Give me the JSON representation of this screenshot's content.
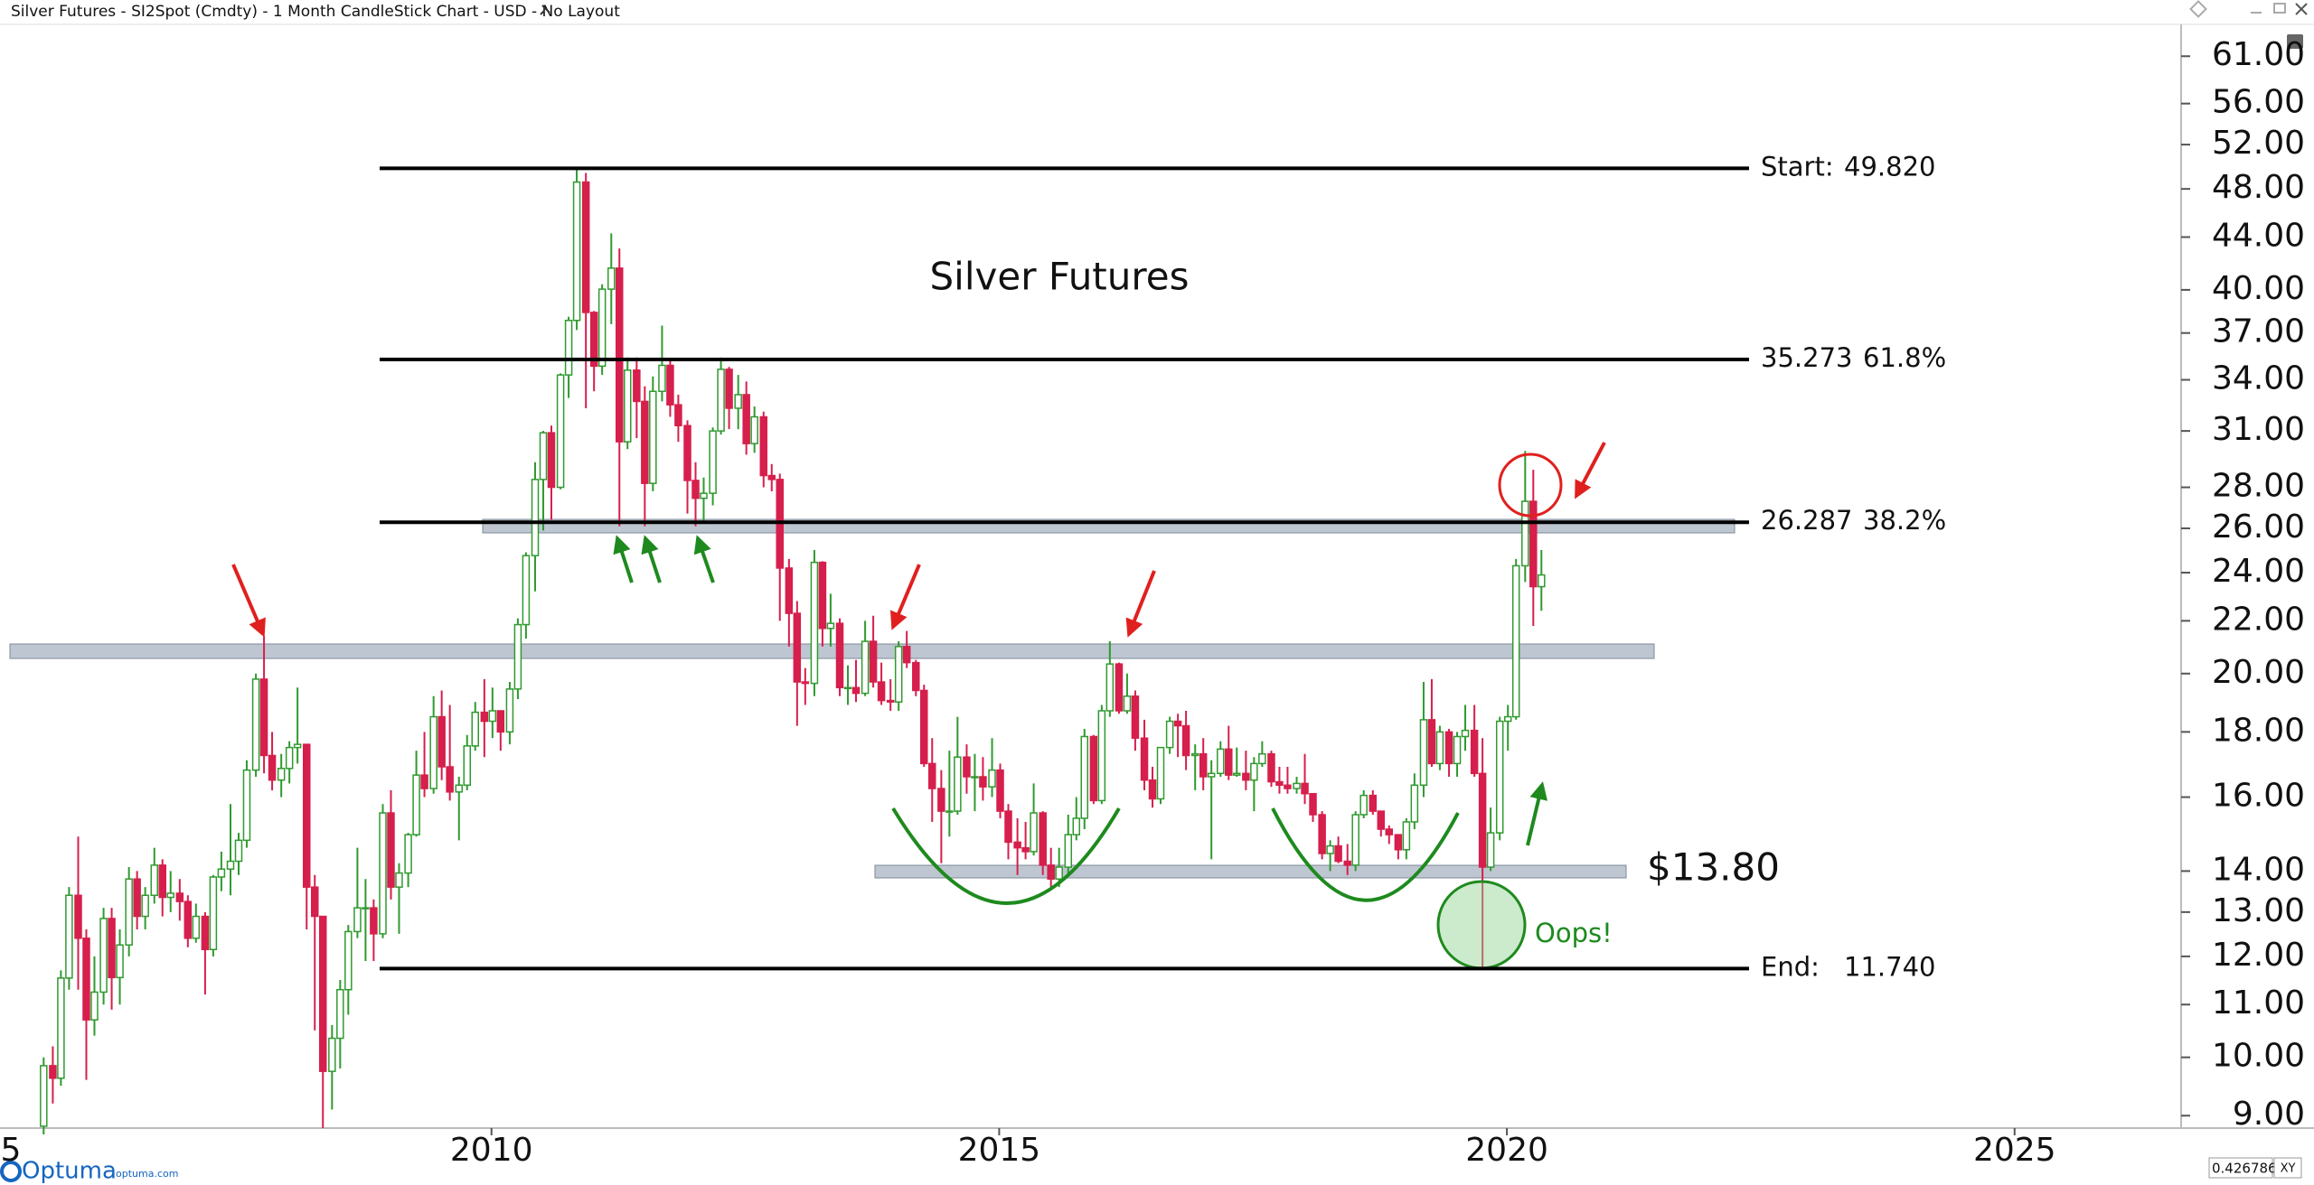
{
  "header": {
    "title": "Silver Futures - SI2Spot (Cmdty) - 1 Month CandleStick Chart - USD - No Layout"
  },
  "chart_data": {
    "type": "candlestick",
    "title": "Silver Futures",
    "x": [
      2005.59,
      2005.68,
      2005.76,
      2005.84,
      2005.93,
      2006.01,
      2006.09,
      2006.18,
      2006.26,
      2006.34,
      2006.43,
      2006.51,
      2006.59,
      2006.68,
      2006.76,
      2006.84,
      2006.93,
      2007.01,
      2007.09,
      2007.18,
      2007.26,
      2007.34,
      2007.43,
      2007.51,
      2007.59,
      2007.68,
      2007.76,
      2007.84,
      2007.93,
      2008.01,
      2008.09,
      2008.18,
      2008.26,
      2008.34,
      2008.43,
      2008.51,
      2008.59,
      2008.68,
      2008.76,
      2008.84,
      2008.93,
      2009.01,
      2009.09,
      2009.18,
      2009.26,
      2009.34,
      2009.43,
      2009.51,
      2009.59,
      2009.68,
      2009.76,
      2009.84,
      2009.93,
      2010.01,
      2010.09,
      2010.18,
      2010.26,
      2010.34,
      2010.43,
      2010.51,
      2010.59,
      2010.68,
      2010.76,
      2010.84,
      2010.93,
      2011.01,
      2011.09,
      2011.18,
      2011.26,
      2011.34,
      2011.43,
      2011.51,
      2011.59,
      2011.68,
      2011.76,
      2011.84,
      2011.93,
      2012.01,
      2012.09,
      2012.18,
      2012.26,
      2012.34,
      2012.43,
      2012.51,
      2012.59,
      2012.68,
      2012.76,
      2012.84,
      2012.93,
      2013.01,
      2013.09,
      2013.18,
      2013.26,
      2013.34,
      2013.43,
      2013.51,
      2013.59,
      2013.68,
      2013.76,
      2013.84,
      2013.93,
      2014.01,
      2014.09,
      2014.18,
      2014.26,
      2014.34,
      2014.43,
      2014.51,
      2014.59,
      2014.68,
      2014.76,
      2014.84,
      2014.93,
      2015.01,
      2015.09,
      2015.18,
      2015.26,
      2015.34,
      2015.43,
      2015.51,
      2015.59,
      2015.68,
      2015.76,
      2015.84,
      2015.93,
      2016.01,
      2016.09,
      2016.18,
      2016.26,
      2016.34,
      2016.43,
      2016.51,
      2016.59,
      2016.68,
      2016.76,
      2016.84,
      2016.93,
      2017.01,
      2017.09,
      2017.18,
      2017.26,
      2017.34,
      2017.43,
      2017.51,
      2017.59,
      2017.68,
      2017.76,
      2017.84,
      2017.93,
      2018.01,
      2018.09,
      2018.18,
      2018.26,
      2018.34,
      2018.43,
      2018.51,
      2018.59,
      2018.68,
      2018.76,
      2018.84,
      2018.93,
      2019.01,
      2019.09,
      2019.18,
      2019.26,
      2019.34,
      2019.43,
      2019.51,
      2019.59,
      2019.68,
      2019.76,
      2019.84,
      2019.93,
      2020.01,
      2020.09,
      2020.18,
      2020.26,
      2020.34
    ],
    "open": [
      8.83,
      9.85,
      9.63,
      11.54,
      13.4,
      12.4,
      10.7,
      11.25,
      12.85,
      11.55,
      12.25,
      13.8,
      12.9,
      13.4,
      14.15,
      13.35,
      13.45,
      13.25,
      12.4,
      12.9,
      12.15,
      13.85,
      14.05,
      14.25,
      14.8,
      16.8,
      19.8,
      17.25,
      16.5,
      16.85,
      17.5,
      17.6,
      13.6,
      12.9,
      9.75,
      10.35,
      11.3,
      12.55,
      13.1,
      13.1,
      12.5,
      15.55,
      13.6,
      13.95,
      14.95,
      16.65,
      16.25,
      18.5,
      16.9,
      16.15,
      16.35,
      17.55,
      18.65,
      18.35,
      18.7,
      18.0,
      19.45,
      21.85,
      24.75,
      28.4,
      30.9,
      28.0,
      34.3,
      37.85,
      48.6,
      38.4,
      34.85,
      40.05,
      41.6,
      30.4,
      34.6,
      32.7,
      28.2,
      33.3,
      34.9,
      32.5,
      31.3,
      28.35,
      27.45,
      27.7,
      31.0,
      34.65,
      32.3,
      33.1,
      30.3,
      31.8,
      28.6,
      28.4,
      24.2,
      22.3,
      19.7,
      19.65,
      24.45,
      21.7,
      21.9,
      19.5,
      19.5,
      19.3,
      21.2,
      19.7,
      19.05,
      19.0,
      21.0,
      20.4,
      19.4,
      17.0,
      16.25,
      15.6,
      15.6,
      17.2,
      16.6,
      16.6,
      16.3,
      16.8,
      15.6,
      14.75,
      14.6,
      14.5,
      15.55,
      14.15,
      13.8,
      14.1,
      14.95,
      15.4,
      17.85,
      15.9,
      18.7,
      20.35,
      18.7,
      19.2,
      17.8,
      16.5,
      15.95,
      17.5,
      18.35,
      18.2,
      17.25,
      17.3,
      16.6,
      16.7,
      17.45,
      16.65,
      16.7,
      16.5,
      17.0,
      17.3,
      16.45,
      16.35,
      16.25,
      16.4,
      16.1,
      15.5,
      14.45,
      14.65,
      14.25,
      14.15,
      15.5,
      16.05,
      15.6,
      15.1,
      14.95,
      14.55,
      15.3,
      16.35,
      18.4,
      17.0,
      18.0,
      17.0,
      17.85,
      18.05,
      16.7,
      14.1,
      15.0,
      18.35,
      18.5,
      24.3,
      27.3,
      23.4
    ],
    "high": [
      10.0,
      10.2,
      11.7,
      13.6,
      14.9,
      12.6,
      12.0,
      13.1,
      13.1,
      12.6,
      14.1,
      14.0,
      13.6,
      14.6,
      14.3,
      14.0,
      13.8,
      13.4,
      13.2,
      13.0,
      13.9,
      14.5,
      15.8,
      15.0,
      17.1,
      20.0,
      21.4,
      18.0,
      17.3,
      17.7,
      19.5,
      17.6,
      13.9,
      12.9,
      10.6,
      11.5,
      12.7,
      14.6,
      13.8,
      13.3,
      15.8,
      16.2,
      14.2,
      15.0,
      17.4,
      18.0,
      19.2,
      19.4,
      18.9,
      16.6,
      17.9,
      19.0,
      19.8,
      19.5,
      18.7,
      19.7,
      22.1,
      24.9,
      29.3,
      31.0,
      31.3,
      34.4,
      38.1,
      49.82,
      49.4,
      38.5,
      40.4,
      44.3,
      43.1,
      35.4,
      35.4,
      33.6,
      34.2,
      37.5,
      35.3,
      33.1,
      31.6,
      29.3,
      28.5,
      31.2,
      35.4,
      34.8,
      34.3,
      33.9,
      32.4,
      32.1,
      29.2,
      28.7,
      24.6,
      22.8,
      20.2,
      25.0,
      24.5,
      23.1,
      22.1,
      20.3,
      20.5,
      22.0,
      22.2,
      20.4,
      19.8,
      21.2,
      21.6,
      20.5,
      19.6,
      17.8,
      16.8,
      17.4,
      18.5,
      17.6,
      17.3,
      17.2,
      17.8,
      17.0,
      15.8,
      15.4,
      15.3,
      16.4,
      15.6,
      14.6,
      14.6,
      15.5,
      16.0,
      18.1,
      17.9,
      18.9,
      21.2,
      20.4,
      20.0,
      19.4,
      18.4,
      16.9,
      17.5,
      18.5,
      18.6,
      18.7,
      17.6,
      17.8,
      17.1,
      17.7,
      18.2,
      17.5,
      17.4,
      17.2,
      17.7,
      17.4,
      16.9,
      16.9,
      16.6,
      17.3,
      16.1,
      15.6,
      14.8,
      14.9,
      14.7,
      15.6,
      16.2,
      16.2,
      15.6,
      15.2,
      14.9,
      15.4,
      16.7,
      19.7,
      19.8,
      18.2,
      18.1,
      18.0,
      18.9,
      18.9,
      17.8,
      15.7,
      18.5,
      18.9,
      24.6,
      29.9,
      28.9,
      25.0
    ],
    "low": [
      8.7,
      9.2,
      9.5,
      11.3,
      11.3,
      9.6,
      10.4,
      11.0,
      10.9,
      11.0,
      12.0,
      12.6,
      12.6,
      13.2,
      12.9,
      13.0,
      12.8,
      12.2,
      12.3,
      11.2,
      12.0,
      13.5,
      13.4,
      13.9,
      14.6,
      16.6,
      16.7,
      16.2,
      16.0,
      16.4,
      17.0,
      12.6,
      10.5,
      8.8,
      9.1,
      9.8,
      10.8,
      12.4,
      11.9,
      11.9,
      12.4,
      13.3,
      12.5,
      13.6,
      14.9,
      16.0,
      16.1,
      16.5,
      15.9,
      14.8,
      16.2,
      17.4,
      17.2,
      17.8,
      17.4,
      17.6,
      19.1,
      21.3,
      23.2,
      25.9,
      26.4,
      27.9,
      32.9,
      37.2,
      32.3,
      33.3,
      34.3,
      37.6,
      26.1,
      30.0,
      30.6,
      26.1,
      27.8,
      32.7,
      31.8,
      30.4,
      26.7,
      26.1,
      26.3,
      27.1,
      30.8,
      31.1,
      31.1,
      29.7,
      29.8,
      28.0,
      27.8,
      22.0,
      21.0,
      18.2,
      18.9,
      19.2,
      21.0,
      21.0,
      19.2,
      18.9,
      19.0,
      19.2,
      19.5,
      18.9,
      18.7,
      18.7,
      20.2,
      19.2,
      16.9,
      15.3,
      14.2,
      14.9,
      15.5,
      16.1,
      15.6,
      15.9,
      16.0,
      15.4,
      14.3,
      13.9,
      14.3,
      14.4,
      13.9,
      13.6,
      13.6,
      13.9,
      14.8,
      15.1,
      15.8,
      15.8,
      18.5,
      18.6,
      18.6,
      17.4,
      16.2,
      15.7,
      15.8,
      17.3,
      17.2,
      16.8,
      16.2,
      16.2,
      14.3,
      16.6,
      16.5,
      16.6,
      16.2,
      15.6,
      16.9,
      16.3,
      16.1,
      16.1,
      16.1,
      15.8,
      15.3,
      14.3,
      14.0,
      14.2,
      13.9,
      14.0,
      15.4,
      15.5,
      14.9,
      14.7,
      14.3,
      14.3,
      15.1,
      16.0,
      16.9,
      16.8,
      16.6,
      16.6,
      17.4,
      16.6,
      11.74,
      14.0,
      14.8,
      17.4,
      18.4,
      23.6,
      21.8,
      22.4
    ],
    "close": [
      9.85,
      9.63,
      11.54,
      13.4,
      12.4,
      10.7,
      11.25,
      12.85,
      11.55,
      12.25,
      13.8,
      12.9,
      13.4,
      14.15,
      13.35,
      13.45,
      13.25,
      12.4,
      12.9,
      12.15,
      13.85,
      14.05,
      14.25,
      14.8,
      16.8,
      19.8,
      17.25,
      16.5,
      16.85,
      17.5,
      17.6,
      13.6,
      12.9,
      9.75,
      10.35,
      11.3,
      12.55,
      13.1,
      13.1,
      12.5,
      15.55,
      13.6,
      13.95,
      14.95,
      16.65,
      16.25,
      18.5,
      16.9,
      16.15,
      16.35,
      17.55,
      18.65,
      18.35,
      18.7,
      18.0,
      19.45,
      21.85,
      24.75,
      28.4,
      30.9,
      28.0,
      34.3,
      37.85,
      48.6,
      38.4,
      34.85,
      40.05,
      41.6,
      30.4,
      34.6,
      32.7,
      28.2,
      33.3,
      34.9,
      32.5,
      31.3,
      28.35,
      27.45,
      27.7,
      31.0,
      34.65,
      32.3,
      33.1,
      30.3,
      31.8,
      28.6,
      28.4,
      24.2,
      22.3,
      19.7,
      19.65,
      24.45,
      21.7,
      21.9,
      19.5,
      19.5,
      19.3,
      21.2,
      19.7,
      19.05,
      19.0,
      21.0,
      20.4,
      19.4,
      17.0,
      16.25,
      15.6,
      15.6,
      17.2,
      16.6,
      16.6,
      16.3,
      16.8,
      15.6,
      14.75,
      14.6,
      14.5,
      15.55,
      14.15,
      13.8,
      14.1,
      14.95,
      15.4,
      17.85,
      15.9,
      18.7,
      20.35,
      18.7,
      19.2,
      17.8,
      16.5,
      15.95,
      17.5,
      18.35,
      18.2,
      17.25,
      17.3,
      16.6,
      16.7,
      17.45,
      16.65,
      16.7,
      16.5,
      17.0,
      17.3,
      16.45,
      16.35,
      16.25,
      16.4,
      16.1,
      15.5,
      14.45,
      14.65,
      14.25,
      14.15,
      15.5,
      16.05,
      15.6,
      15.1,
      14.95,
      14.55,
      15.3,
      16.35,
      18.4,
      17.0,
      18.0,
      17.0,
      17.85,
      18.05,
      16.7,
      14.1,
      15.0,
      18.35,
      18.5,
      24.3,
      27.3,
      23.4,
      23.9
    ],
    "up_color": "#2f9a2f",
    "down_color": "#d61f4c",
    "xlim": [
      2005.16,
      2026.64
    ],
    "xticks": [
      {
        "value": 2005,
        "label": "5"
      },
      2010,
      2015,
      2020,
      2025
    ],
    "ylim": [
      8.8,
      64.4
    ],
    "log_scale": true,
    "yticks": [
      {
        "value": 9,
        "label": "9.00"
      },
      {
        "value": 10,
        "label": "10.00"
      },
      {
        "value": 11,
        "label": "11.00"
      },
      {
        "value": 12,
        "label": "12.00"
      },
      {
        "value": 13,
        "label": "13.00"
      },
      {
        "value": 14,
        "label": "14.00"
      },
      {
        "value": 16,
        "label": "16.00"
      },
      {
        "value": 18,
        "label": "18.00"
      },
      {
        "value": 20,
        "label": "20.00"
      },
      {
        "value": 22,
        "label": "22.00"
      },
      {
        "value": 24,
        "label": "24.00"
      },
      {
        "value": 26,
        "label": "26.00"
      },
      {
        "value": 28,
        "label": "28.00"
      },
      {
        "value": 31,
        "label": "31.00"
      },
      {
        "value": 34,
        "label": "34.00"
      },
      {
        "value": 37,
        "label": "37.00"
      },
      {
        "value": 40,
        "label": "40.00"
      },
      {
        "value": 44,
        "label": "44.00"
      },
      {
        "value": 48,
        "label": "48.00"
      },
      {
        "value": 52,
        "label": "52.00"
      },
      {
        "value": 56,
        "label": "56.00"
      },
      {
        "value": 61,
        "label": "61.00"
      }
    ],
    "fib_levels": [
      {
        "name": "Start:",
        "value": 49.82,
        "value_label": "49.820"
      },
      {
        "value": 35.273,
        "ratio": "61.8%"
      },
      {
        "value": 26.287,
        "ratio": "38.2%"
      },
      {
        "name": "End:",
        "value": 11.74,
        "value_label": "11.740"
      }
    ],
    "annotations": {
      "price_label": "$13.80",
      "note": "Oops!"
    }
  },
  "footer": {
    "logo": "Optuma",
    "site": "optuma.com",
    "cursor_value": "0.4267863",
    "cursor_mode": "XY"
  }
}
